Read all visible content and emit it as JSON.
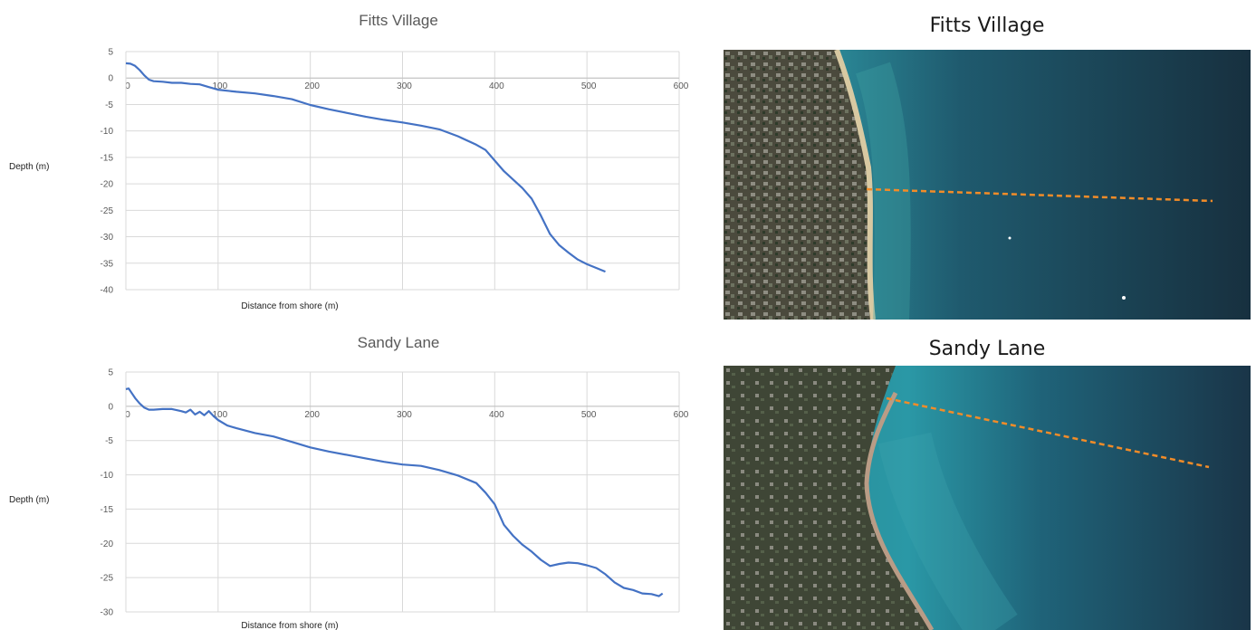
{
  "chart_data": [
    {
      "type": "line",
      "title": "Fitts Village",
      "xlabel": "Distance from shore (m)",
      "ylabel": "Depth (m)",
      "xlim": [
        0,
        600
      ],
      "ylim": [
        -40,
        5
      ],
      "x_ticks": [
        0,
        100,
        200,
        300,
        400,
        500,
        600
      ],
      "y_ticks": [
        5,
        0,
        -5,
        -10,
        -15,
        -20,
        -25,
        -30,
        -35,
        -40
      ],
      "grid": true,
      "color": "#4472c4",
      "series": [
        {
          "x": [
            0,
            5,
            10,
            15,
            20,
            25,
            30,
            40,
            50,
            60,
            70,
            80,
            90,
            100,
            120,
            140,
            160,
            180,
            200,
            220,
            240,
            260,
            280,
            300,
            320,
            340,
            360,
            380,
            390,
            400,
            410,
            420,
            430,
            440,
            450,
            460,
            470,
            480,
            490,
            500,
            510,
            520
          ],
          "y": [
            2.8,
            2.7,
            2.3,
            1.5,
            0.5,
            -0.3,
            -0.6,
            -0.7,
            -0.9,
            -0.9,
            -1.1,
            -1.2,
            -1.7,
            -2.2,
            -2.6,
            -2.9,
            -3.4,
            -4.0,
            -5.1,
            -5.9,
            -6.6,
            -7.3,
            -7.9,
            -8.4,
            -9.0,
            -9.7,
            -11.0,
            -12.6,
            -13.6,
            -15.6,
            -17.6,
            -19.2,
            -20.8,
            -22.8,
            -26.0,
            -29.5,
            -31.6,
            -33.0,
            -34.3,
            -35.2,
            -35.9,
            -36.6
          ]
        }
      ]
    },
    {
      "type": "line",
      "title": "Sandy Lane",
      "xlabel": "Distance from shore (m)",
      "ylabel": "Depth (m)",
      "xlim": [
        0,
        600
      ],
      "ylim": [
        -30,
        5
      ],
      "x_ticks": [
        0,
        100,
        200,
        300,
        400,
        500,
        600
      ],
      "y_ticks": [
        5,
        0,
        -5,
        -10,
        -15,
        -20,
        -25,
        -30
      ],
      "grid": true,
      "color": "#4472c4",
      "series": [
        {
          "x": [
            0,
            3,
            6,
            10,
            15,
            20,
            25,
            30,
            40,
            50,
            60,
            65,
            70,
            75,
            80,
            85,
            90,
            95,
            100,
            110,
            120,
            140,
            160,
            180,
            200,
            220,
            240,
            260,
            280,
            300,
            320,
            340,
            360,
            380,
            390,
            400,
            410,
            420,
            430,
            440,
            450,
            460,
            470,
            480,
            490,
            500,
            510,
            520,
            530,
            540,
            550,
            560,
            570,
            578,
            582
          ],
          "y": [
            2.5,
            2.6,
            2.0,
            1.2,
            0.4,
            -0.2,
            -0.5,
            -0.5,
            -0.4,
            -0.4,
            -0.7,
            -0.9,
            -0.5,
            -1.2,
            -0.8,
            -1.3,
            -0.7,
            -1.4,
            -2.0,
            -2.8,
            -3.2,
            -3.9,
            -4.4,
            -5.2,
            -6.0,
            -6.6,
            -7.1,
            -7.6,
            -8.1,
            -8.5,
            -8.7,
            -9.3,
            -10.1,
            -11.2,
            -12.6,
            -14.3,
            -17.3,
            -18.9,
            -20.2,
            -21.2,
            -22.4,
            -23.3,
            -23.0,
            -22.8,
            -22.9,
            -23.2,
            -23.6,
            -24.5,
            -25.7,
            -26.5,
            -26.8,
            -27.3,
            -27.4,
            -27.7,
            -27.3
          ]
        }
      ]
    }
  ],
  "maps": [
    {
      "title": "Fitts Village"
    },
    {
      "title": "Sandy Lane"
    }
  ],
  "colors": {
    "line": "#4472c4",
    "grid": "#d9d9d9",
    "transect": "#f28c28",
    "sea_shallow": "#2f97a0",
    "sea_deep": "#183242",
    "land": "#4a4a3c"
  }
}
